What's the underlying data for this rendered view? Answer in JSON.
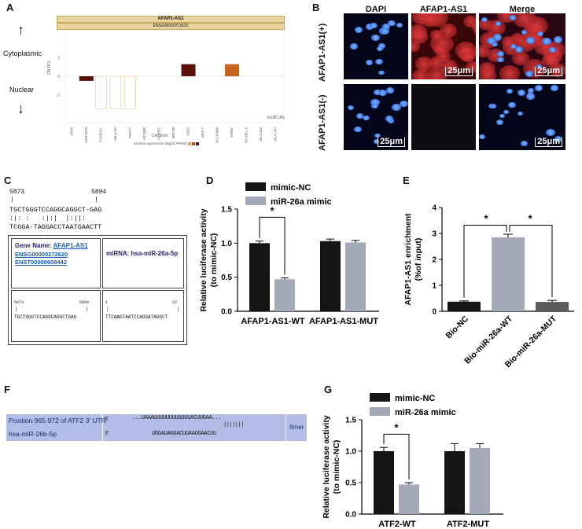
{
  "panels": {
    "A": "A",
    "B": "B",
    "C": "C",
    "D": "D",
    "E": "E",
    "F": "F",
    "G": "G"
  },
  "panelA": {
    "title": "AFAP1-AS1",
    "subtitle": "ENSG00000272620",
    "cytoplasmic": "Cytoplasmic",
    "nuclear": "Nuclear",
    "ylabel": "CN RCI",
    "xlabel": "Cell lines",
    "watermark": "lncATLAS",
    "legend_text": "Nuclear expression (log10 FPKM)",
    "cell_lines": [
      "A549",
      "GM12878",
      "H1.hESC",
      "HeLa.S3",
      "HepG2",
      "HT1080",
      "HUVEC",
      "IMR.90",
      "K562",
      "MCF.7",
      "NCI.H460",
      "NHEK",
      "SK.MEL.5",
      "SK.N.DZ",
      "SK.N.SH"
    ],
    "chart_data": {
      "type": "bar",
      "ylim": [
        -5,
        5
      ],
      "categories": [
        "A549",
        "GM12878",
        "H1.hESC",
        "HeLa.S3",
        "HepG2",
        "HT1080",
        "HUVEC",
        "IMR.90",
        "K562",
        "MCF.7",
        "NCI.H460",
        "NHEK",
        "SK.MEL.5",
        "SK.N.DZ",
        "SK.N.SH"
      ],
      "values": [
        0,
        -0.5,
        0,
        0,
        0,
        0,
        0,
        0,
        1.3,
        0,
        0,
        1.3,
        0,
        0,
        0
      ]
    }
  },
  "panelB": {
    "headers": [
      "DAPI",
      "AFAP1-AS1",
      "Merge"
    ],
    "row_labels": [
      "AFAP1-AS1(+)",
      "AFAP1-AS1(-)"
    ],
    "scale": "25μm"
  },
  "panelC": {
    "pos_start": "5873",
    "pos_end": "5894",
    "seq_top": "TGCTGGGTCCAGGCAGGCT-GAG",
    "seq_bonds": ":|: :   :|:|  |:||:",
    "seq_bottom": "TCGGA-TAGGACCTAATGAACTT",
    "gene_label": "Gene Name:",
    "gene_name": "AFAP1-AS1",
    "gene_ids": [
      "ENSG00000272620",
      "ENST00000608442"
    ],
    "mirna": "miRNA: hsa-miR-26a-5p",
    "box_seq_left": "TGCTGGGTCCAGGCAGGCTGAG",
    "box_pos_right_start": "1",
    "box_pos_right_end": "22",
    "box_seq_right": "TTCAAGTAATCCAGGATAGGCT"
  },
  "panelD": {
    "chart_data": {
      "type": "bar",
      "categories": [
        "AFAP1-AS1-WT",
        "AFAP1-AS1-MUT"
      ],
      "series": [
        {
          "name": "mimic-NC",
          "values": [
            1.0,
            1.03
          ],
          "errors": [
            0.03,
            0.03
          ],
          "color": "#141414"
        },
        {
          "name": "miR-26a mimic",
          "values": [
            0.47,
            1.01
          ],
          "errors": [
            0.02,
            0.03
          ],
          "color": "#a4a9ba"
        }
      ],
      "ylim": [
        0,
        1.5
      ],
      "yticks": [
        "0.0",
        "0.5",
        "1.0",
        "1.5"
      ],
      "ylabel": "Relative luciferase activity\n(to mimic-NC)",
      "legend_placement": "top",
      "annotation": "*"
    }
  },
  "panelE": {
    "chart_data": {
      "type": "bar",
      "categories": [
        "Bio-NC",
        "Bio-miR-26a-WT",
        "Bio-miR-26a-MUT"
      ],
      "values": [
        0.37,
        2.85,
        0.36
      ],
      "errors": [
        0.03,
        0.12,
        0.06
      ],
      "colors": [
        "#141414",
        "#a4a9ba",
        "#5a5a5a"
      ],
      "ylim": [
        0,
        4
      ],
      "yticks": [
        "0",
        "1",
        "2",
        "3",
        "4"
      ],
      "ylabel": "AFAP1-AS1 enrichment\n(%of input)",
      "annotations": [
        "*",
        "*"
      ]
    }
  },
  "panelF": {
    "pos_label": "Position 965-972 of ATF2 3' UTR",
    "five": "5'",
    "seq_top": "...UAAAUUUUUUUUUUUUACUUGAA...",
    "bonds": "|||||||",
    "mirna_label": "hsa-miR-26b-5p",
    "three": "3'",
    "seq_bottom": "UGGAUAGGACUUAAUGAACUU",
    "site": "8mer"
  },
  "panelG": {
    "chart_data": {
      "type": "bar",
      "categories": [
        "ATF2-WT",
        "ATF2-MUT"
      ],
      "series": [
        {
          "name": "mimic-NC",
          "values": [
            1.0,
            1.0
          ],
          "errors": [
            0.06,
            0.12
          ],
          "color": "#141414"
        },
        {
          "name": "miR-26a mimic",
          "values": [
            0.47,
            1.05
          ],
          "errors": [
            0.03,
            0.07
          ],
          "color": "#a4a9ba"
        }
      ],
      "ylim": [
        0,
        1.5
      ],
      "yticks": [
        "0.0",
        "0.5",
        "1.0",
        "1.5"
      ],
      "ylabel": "Relative luciferase activity\n(to mimic-NC)",
      "legend_placement": "top",
      "annotation": "*"
    }
  }
}
